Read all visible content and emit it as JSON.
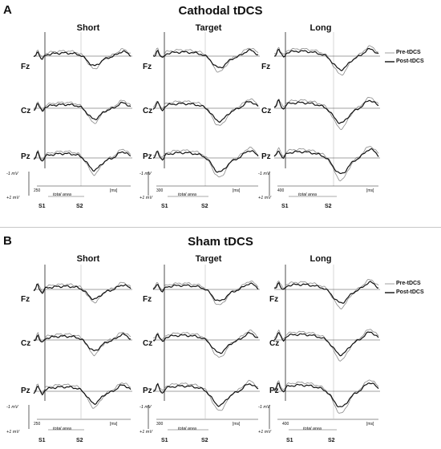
{
  "panels": [
    {
      "letter": "A",
      "title": "Cathodal tDCS",
      "columns": [
        {
          "header": "Short",
          "scale_value": "250"
        },
        {
          "header": "Target",
          "scale_value": "300"
        },
        {
          "header": "Long",
          "scale_value": "400"
        }
      ]
    },
    {
      "letter": "B",
      "title": "Sham tDCS",
      "columns": [
        {
          "header": "Short",
          "scale_value": "250"
        },
        {
          "header": "Target",
          "scale_value": "300"
        },
        {
          "header": "Long",
          "scale_value": "400"
        }
      ]
    }
  ],
  "electrodes": [
    "Fz",
    "Cz",
    "Pz"
  ],
  "legend": {
    "pre": "Pre-tDCS",
    "post": "Post-tDCS"
  },
  "axis": {
    "neg": "-1 mV",
    "pos": "+1 mV",
    "unit": "[ms]",
    "total_area": "total area",
    "s1": "S1",
    "s2": "S2"
  },
  "colors": {
    "pre": "#8a8a8a",
    "post": "#111111",
    "baseline": "#444444",
    "gridline": "#bdbdbd"
  }
}
